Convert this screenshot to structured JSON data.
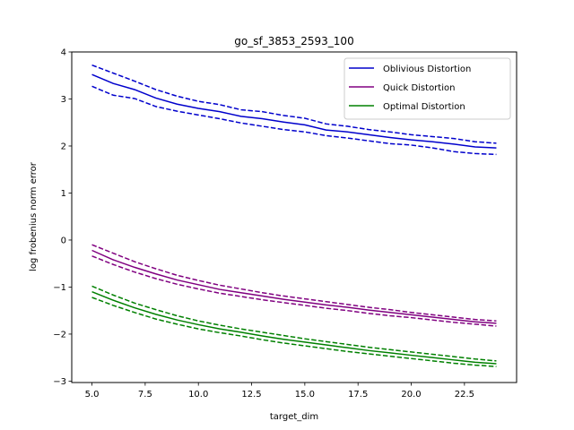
{
  "chart_data": {
    "type": "line",
    "title": "go_sf_3853_2593_100",
    "xlabel": "target_dim",
    "ylabel": "log frobenius norm error",
    "xlim": [
      4.05,
      24.95
    ],
    "ylim": [
      -3.03,
      4.0
    ],
    "xticks": [
      5.0,
      7.5,
      10.0,
      12.5,
      15.0,
      17.5,
      20.0,
      22.5
    ],
    "xtick_labels": [
      "5.0",
      "7.5",
      "10.0",
      "12.5",
      "15.0",
      "17.5",
      "20.0",
      "22.5"
    ],
    "yticks": [
      -3,
      -2,
      -1,
      0,
      1,
      2,
      3,
      4
    ],
    "ytick_labels": [
      "−3",
      "−2",
      "−1",
      "0",
      "1",
      "2",
      "3",
      "4"
    ],
    "grid": false,
    "legend_position": "top-right",
    "x": [
      5,
      6,
      7,
      8,
      9,
      10,
      11,
      12,
      13,
      14,
      15,
      16,
      17,
      18,
      19,
      20,
      21,
      22,
      23,
      24
    ],
    "series": [
      {
        "name": "Oblivious Distortion",
        "color": "#0000cc",
        "mean": [
          3.52,
          3.33,
          3.2,
          3.02,
          2.89,
          2.8,
          2.73,
          2.63,
          2.58,
          2.51,
          2.45,
          2.34,
          2.3,
          2.24,
          2.18,
          2.13,
          2.09,
          2.04,
          1.98,
          1.96
        ],
        "upper": [
          3.72,
          3.55,
          3.38,
          3.2,
          3.06,
          2.95,
          2.88,
          2.77,
          2.73,
          2.65,
          2.59,
          2.47,
          2.42,
          2.35,
          2.3,
          2.24,
          2.2,
          2.16,
          2.09,
          2.06
        ],
        "lower": [
          3.27,
          3.08,
          3.01,
          2.84,
          2.74,
          2.66,
          2.58,
          2.49,
          2.42,
          2.35,
          2.3,
          2.22,
          2.17,
          2.11,
          2.05,
          2.02,
          1.96,
          1.88,
          1.84,
          1.82
        ]
      },
      {
        "name": "Quick Distortion",
        "color": "#800080",
        "mean": [
          -0.22,
          -0.42,
          -0.58,
          -0.72,
          -0.85,
          -0.95,
          -1.05,
          -1.12,
          -1.19,
          -1.26,
          -1.32,
          -1.38,
          -1.43,
          -1.49,
          -1.54,
          -1.59,
          -1.64,
          -1.69,
          -1.74,
          -1.77
        ],
        "upper": [
          -0.1,
          -0.28,
          -0.46,
          -0.61,
          -0.75,
          -0.86,
          -0.96,
          -1.04,
          -1.12,
          -1.19,
          -1.25,
          -1.31,
          -1.37,
          -1.43,
          -1.48,
          -1.54,
          -1.59,
          -1.64,
          -1.69,
          -1.72
        ],
        "lower": [
          -0.34,
          -0.52,
          -0.68,
          -0.82,
          -0.94,
          -1.04,
          -1.13,
          -1.2,
          -1.27,
          -1.33,
          -1.39,
          -1.45,
          -1.5,
          -1.56,
          -1.61,
          -1.65,
          -1.7,
          -1.75,
          -1.79,
          -1.83
        ]
      },
      {
        "name": "Optimal Distortion",
        "color": "#008000",
        "mean": [
          -1.1,
          -1.28,
          -1.44,
          -1.58,
          -1.7,
          -1.8,
          -1.89,
          -1.96,
          -2.04,
          -2.11,
          -2.17,
          -2.23,
          -2.29,
          -2.35,
          -2.4,
          -2.45,
          -2.5,
          -2.55,
          -2.6,
          -2.63
        ],
        "upper": [
          -0.98,
          -1.17,
          -1.34,
          -1.48,
          -1.61,
          -1.72,
          -1.81,
          -1.89,
          -1.96,
          -2.03,
          -2.1,
          -2.16,
          -2.22,
          -2.28,
          -2.33,
          -2.38,
          -2.43,
          -2.48,
          -2.53,
          -2.57
        ],
        "lower": [
          -1.22,
          -1.39,
          -1.54,
          -1.68,
          -1.79,
          -1.89,
          -1.97,
          -2.04,
          -2.12,
          -2.19,
          -2.25,
          -2.31,
          -2.37,
          -2.42,
          -2.47,
          -2.52,
          -2.57,
          -2.62,
          -2.66,
          -2.69
        ]
      }
    ]
  }
}
